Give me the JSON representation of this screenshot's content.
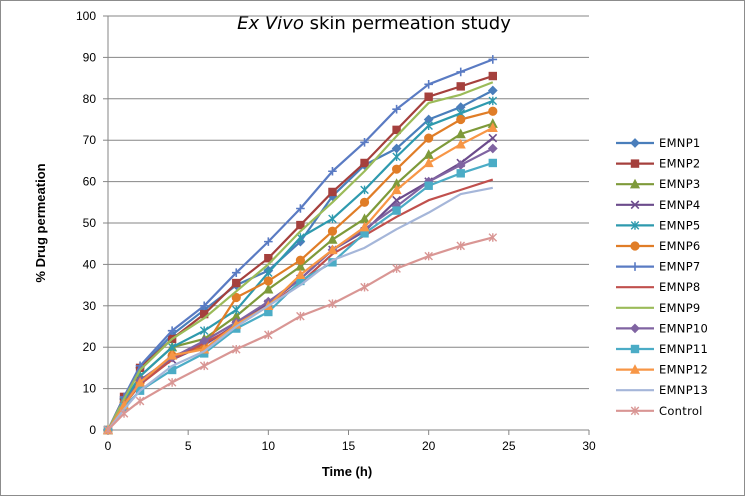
{
  "chart_data": {
    "type": "line",
    "title_italic": "Ex Vivo",
    "title_rest": "skin permeation study",
    "xlabel": "Time (h)",
    "ylabel": "% Drug permeation",
    "xlim": [
      0,
      30
    ],
    "ylim": [
      0,
      100
    ],
    "xticks": [
      0,
      5,
      10,
      15,
      20,
      25,
      30
    ],
    "yticks": [
      0,
      10,
      20,
      30,
      40,
      50,
      60,
      70,
      80,
      90,
      100
    ],
    "grid": "horizontal",
    "legend_position": "right",
    "x": [
      0,
      1,
      2,
      4,
      6,
      8,
      10,
      12,
      14,
      16,
      18,
      20,
      22,
      24
    ],
    "series": [
      {
        "name": "EMNP1",
        "color": "#4A7EBB",
        "marker": "diamond",
        "values": [
          0,
          7.5,
          15,
          23,
          29,
          35,
          38.5,
          45.5,
          56.5,
          64,
          68,
          75,
          78,
          82
        ]
      },
      {
        "name": "EMNP2",
        "color": "#A5403D",
        "marker": "square",
        "values": [
          0,
          8,
          15,
          22,
          28,
          35.5,
          41.5,
          49.5,
          57.5,
          64.5,
          72.5,
          80.5,
          83,
          85.5
        ]
      },
      {
        "name": "EMNP3",
        "color": "#7E9A3A",
        "marker": "triangle",
        "values": [
          0,
          6,
          13,
          20,
          22,
          27.5,
          34,
          39.5,
          46,
          51,
          59.5,
          66.5,
          71.5,
          74
        ]
      },
      {
        "name": "EMNP4",
        "color": "#6C4C8C",
        "marker": "x",
        "values": [
          0,
          6,
          12,
          17,
          20.5,
          25.5,
          30.5,
          36.5,
          43.5,
          48,
          55.5,
          60,
          64.5,
          70.5
        ]
      },
      {
        "name": "EMNP5",
        "color": "#2E9AAE",
        "marker": "star",
        "values": [
          0,
          7,
          13,
          20,
          24,
          29,
          38,
          46.5,
          51,
          58,
          66,
          73.5,
          76.5,
          79.5
        ]
      },
      {
        "name": "EMNP6",
        "color": "#E07D27",
        "marker": "circle",
        "values": [
          0,
          6.5,
          11.5,
          18,
          20,
          32,
          36,
          41,
          48,
          55,
          63,
          70.5,
          75,
          77
        ]
      },
      {
        "name": "EMNP7",
        "color": "#5A7BC3",
        "marker": "plus",
        "values": [
          0,
          8,
          15.5,
          24,
          30,
          38,
          45.5,
          53.5,
          62.5,
          69.5,
          77.5,
          83.5,
          86.5,
          89.5
        ]
      },
      {
        "name": "EMNP8",
        "color": "#C0504D",
        "marker": "none",
        "values": [
          0,
          6,
          11,
          17,
          21,
          25,
          30,
          35.5,
          42.5,
          47,
          51.5,
          55.5,
          58,
          60.5
        ]
      },
      {
        "name": "EMNP9",
        "color": "#9BBB59",
        "marker": "none",
        "values": [
          0,
          7.5,
          14.5,
          22,
          27,
          33.5,
          40,
          48,
          55,
          62.5,
          71,
          79,
          81,
          84
        ]
      },
      {
        "name": "EMNP10",
        "color": "#8064A2",
        "marker": "diamond",
        "values": [
          0,
          6,
          12,
          17.5,
          21.5,
          26,
          31,
          36.5,
          43.5,
          48.5,
          54,
          60,
          64,
          68
        ]
      },
      {
        "name": "EMNP11",
        "color": "#4BACC6",
        "marker": "square",
        "values": [
          0,
          5.5,
          9.5,
          14.5,
          18.5,
          24.5,
          28.5,
          36,
          40.5,
          47.5,
          53,
          59,
          62,
          64.5
        ]
      },
      {
        "name": "EMNP12",
        "color": "#F79646",
        "marker": "triangle",
        "values": [
          0,
          6,
          11.5,
          18,
          19.5,
          25.5,
          30,
          37.5,
          43.5,
          49,
          58,
          64.5,
          69,
          73
        ]
      },
      {
        "name": "EMNP13",
        "color": "#A5B6D9",
        "marker": "none",
        "values": [
          0,
          5,
          9.5,
          15.5,
          19,
          25,
          30,
          35,
          41,
          44,
          48.5,
          52.5,
          57,
          58.5
        ]
      },
      {
        "name": "Control",
        "color": "#D99694",
        "marker": "star",
        "values": [
          0,
          4,
          7,
          11.5,
          15.5,
          19.5,
          23,
          27.5,
          30.5,
          34.5,
          39,
          42,
          44.5,
          46.5
        ]
      }
    ]
  }
}
